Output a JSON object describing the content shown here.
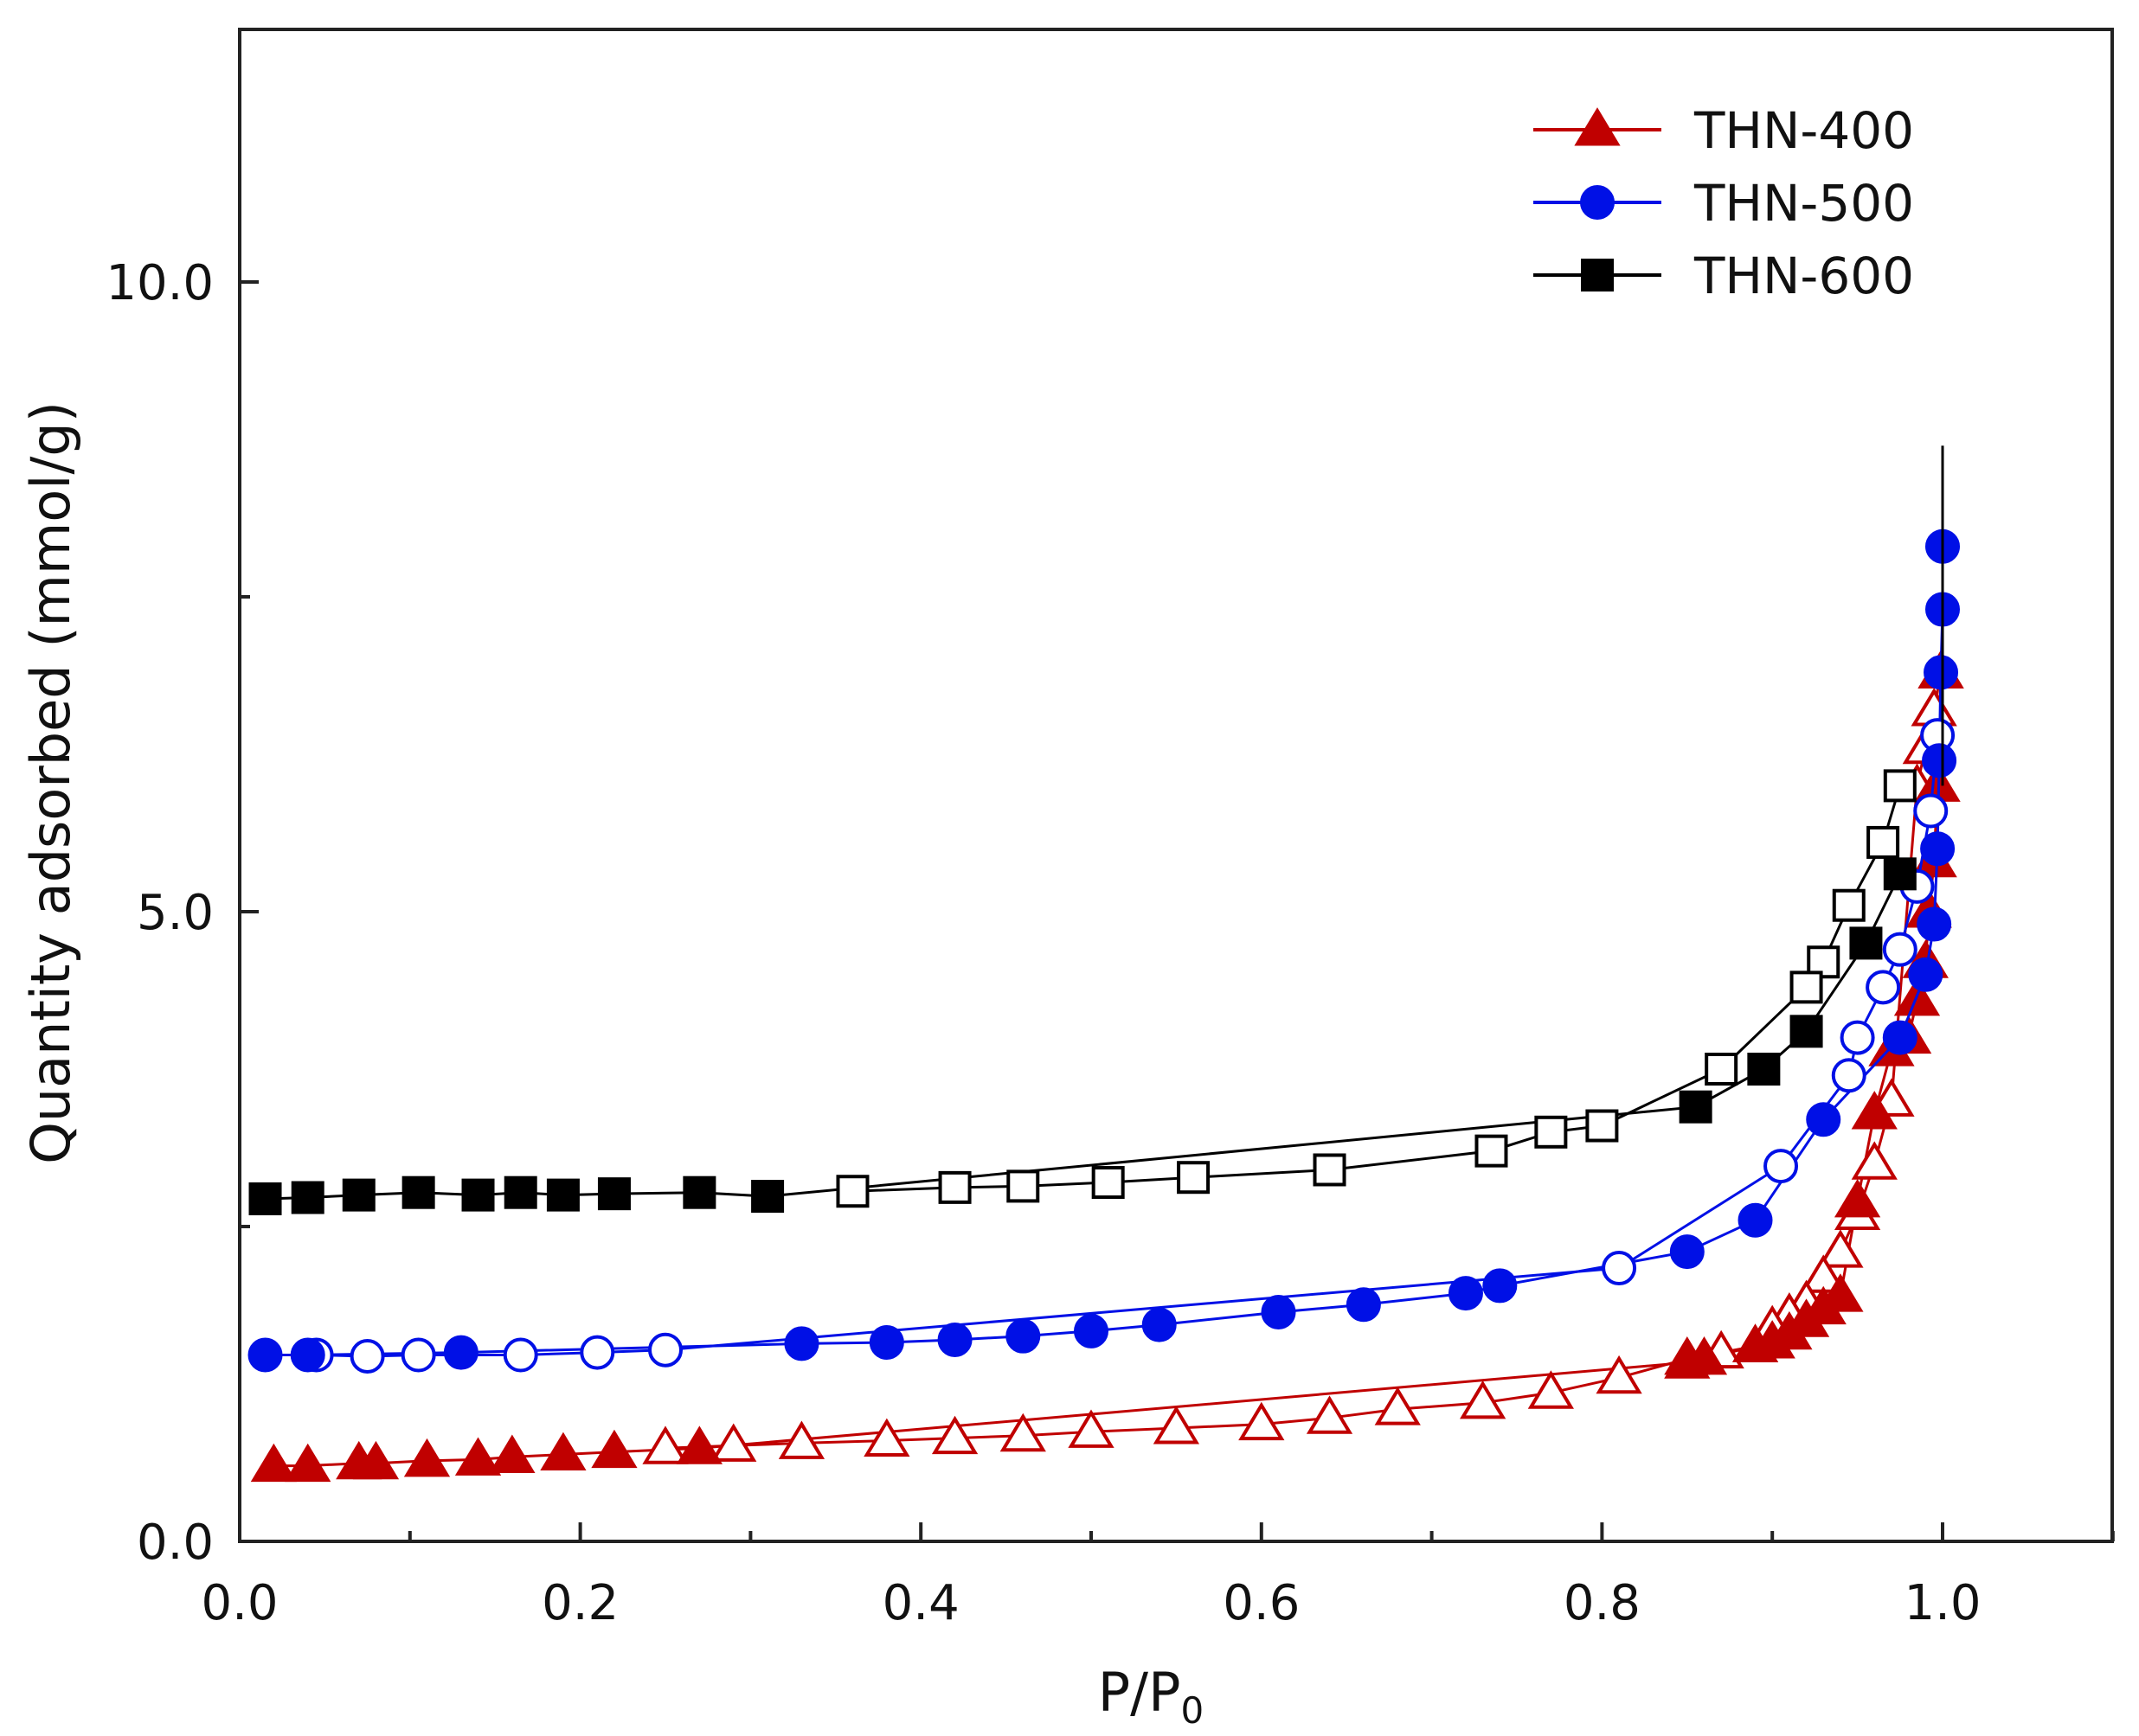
{
  "chart_data": {
    "type": "scatter",
    "title": "",
    "xlabel": "P/P",
    "xlabel_sub": "0",
    "ylabel": "Quantity adsorbed (mmol/g)",
    "xlim": [
      0.0,
      1.1
    ],
    "ylim": [
      0.0,
      12.0
    ],
    "x_ticks": [
      0.0,
      0.2,
      0.4,
      0.6,
      0.8,
      1.0
    ],
    "x_tick_labels": [
      "0.0",
      "0.2",
      "0.4",
      "0.6",
      "0.8",
      "1.0"
    ],
    "y_ticks": [
      0.0,
      5.0,
      10.0
    ],
    "y_tick_labels": [
      "0.0",
      "5.0",
      "10.0"
    ],
    "y_minor_ticks": [
      2.5,
      7.5
    ],
    "legend_position": "top-right",
    "series": [
      {
        "name": "THN-400",
        "color": "#c00000",
        "marker": "triangle",
        "adsorption": {
          "x": [
            0.02,
            0.04,
            0.07,
            0.08,
            0.11,
            0.14,
            0.16,
            0.19,
            0.22,
            0.27,
            0.85,
            0.86,
            0.89,
            0.9,
            0.91,
            0.92,
            0.93,
            0.94,
            0.95,
            0.96,
            0.97,
            0.98,
            0.985,
            0.99,
            0.992,
            0.995,
            0.997,
            0.999
          ],
          "y": [
            0.6,
            0.6,
            0.62,
            0.62,
            0.64,
            0.65,
            0.67,
            0.69,
            0.71,
            0.74,
            1.42,
            1.45,
            1.55,
            1.58,
            1.65,
            1.75,
            1.85,
            1.95,
            2.7,
            3.4,
            3.9,
            4.0,
            4.3,
            4.6,
            5.0,
            5.4,
            6.0,
            6.9
          ]
        },
        "desorption": {
          "x": [
            0.999,
            0.995,
            0.99,
            0.985,
            0.97,
            0.96,
            0.95,
            0.94,
            0.93,
            0.92,
            0.91,
            0.9,
            0.89,
            0.87,
            0.85,
            0.81,
            0.77,
            0.73,
            0.68,
            0.64,
            0.6,
            0.55,
            0.5,
            0.46,
            0.42,
            0.38,
            0.33,
            0.29,
            0.25
          ],
          "y": [
            6.9,
            6.6,
            6.3,
            6.0,
            3.5,
            3.0,
            2.6,
            2.3,
            2.1,
            1.9,
            1.8,
            1.7,
            1.55,
            1.5,
            1.45,
            1.3,
            1.18,
            1.1,
            1.05,
            0.98,
            0.93,
            0.9,
            0.87,
            0.84,
            0.82,
            0.8,
            0.78,
            0.76,
            0.74
          ]
        }
      },
      {
        "name": "THN-500",
        "color": "#0010e6",
        "marker": "circle",
        "adsorption": {
          "x": [
            0.015,
            0.04,
            0.13,
            0.33,
            0.38,
            0.42,
            0.46,
            0.5,
            0.54,
            0.61,
            0.66,
            0.72,
            0.74,
            0.85,
            0.89,
            0.93,
            0.975,
            0.99,
            0.995,
            0.997,
            0.998,
            0.999,
            1.0,
            1.0
          ],
          "y": [
            1.48,
            1.48,
            1.5,
            1.57,
            1.58,
            1.6,
            1.63,
            1.67,
            1.72,
            1.82,
            1.88,
            1.97,
            2.03,
            2.3,
            2.55,
            3.35,
            4.0,
            4.5,
            4.9,
            5.5,
            6.2,
            6.9,
            7.4,
            7.9
          ]
        },
        "desorption": {
          "x": [
            0.997,
            0.993,
            0.985,
            0.975,
            0.965,
            0.95,
            0.945,
            0.905,
            0.81,
            0.25,
            0.21,
            0.165,
            0.105,
            0.075,
            0.045
          ],
          "y": [
            6.4,
            5.8,
            5.2,
            4.7,
            4.4,
            4.0,
            3.7,
            2.98,
            2.17,
            1.52,
            1.5,
            1.48,
            1.48,
            1.47,
            1.48
          ]
        }
      },
      {
        "name": "THN-600",
        "color": "#000000",
        "marker": "square",
        "adsorption": {
          "x": [
            0.015,
            0.04,
            0.07,
            0.105,
            0.14,
            0.165,
            0.19,
            0.22,
            0.27,
            0.31,
            0.855,
            0.895,
            0.92,
            0.955,
            0.975
          ],
          "y": [
            2.72,
            2.73,
            2.75,
            2.77,
            2.75,
            2.77,
            2.75,
            2.76,
            2.77,
            2.74,
            3.45,
            3.75,
            4.05,
            4.75,
            5.3
          ]
        },
        "desorption": {
          "x": [
            0.975,
            0.965,
            0.945,
            0.93,
            0.92,
            0.87,
            0.8,
            0.77,
            0.735,
            0.64,
            0.56,
            0.51,
            0.46,
            0.42,
            0.36
          ],
          "y": [
            6.0,
            5.55,
            5.05,
            4.6,
            4.4,
            3.75,
            3.3,
            3.25,
            3.1,
            2.95,
            2.89,
            2.85,
            2.82,
            2.81,
            2.78
          ]
        }
      }
    ]
  }
}
